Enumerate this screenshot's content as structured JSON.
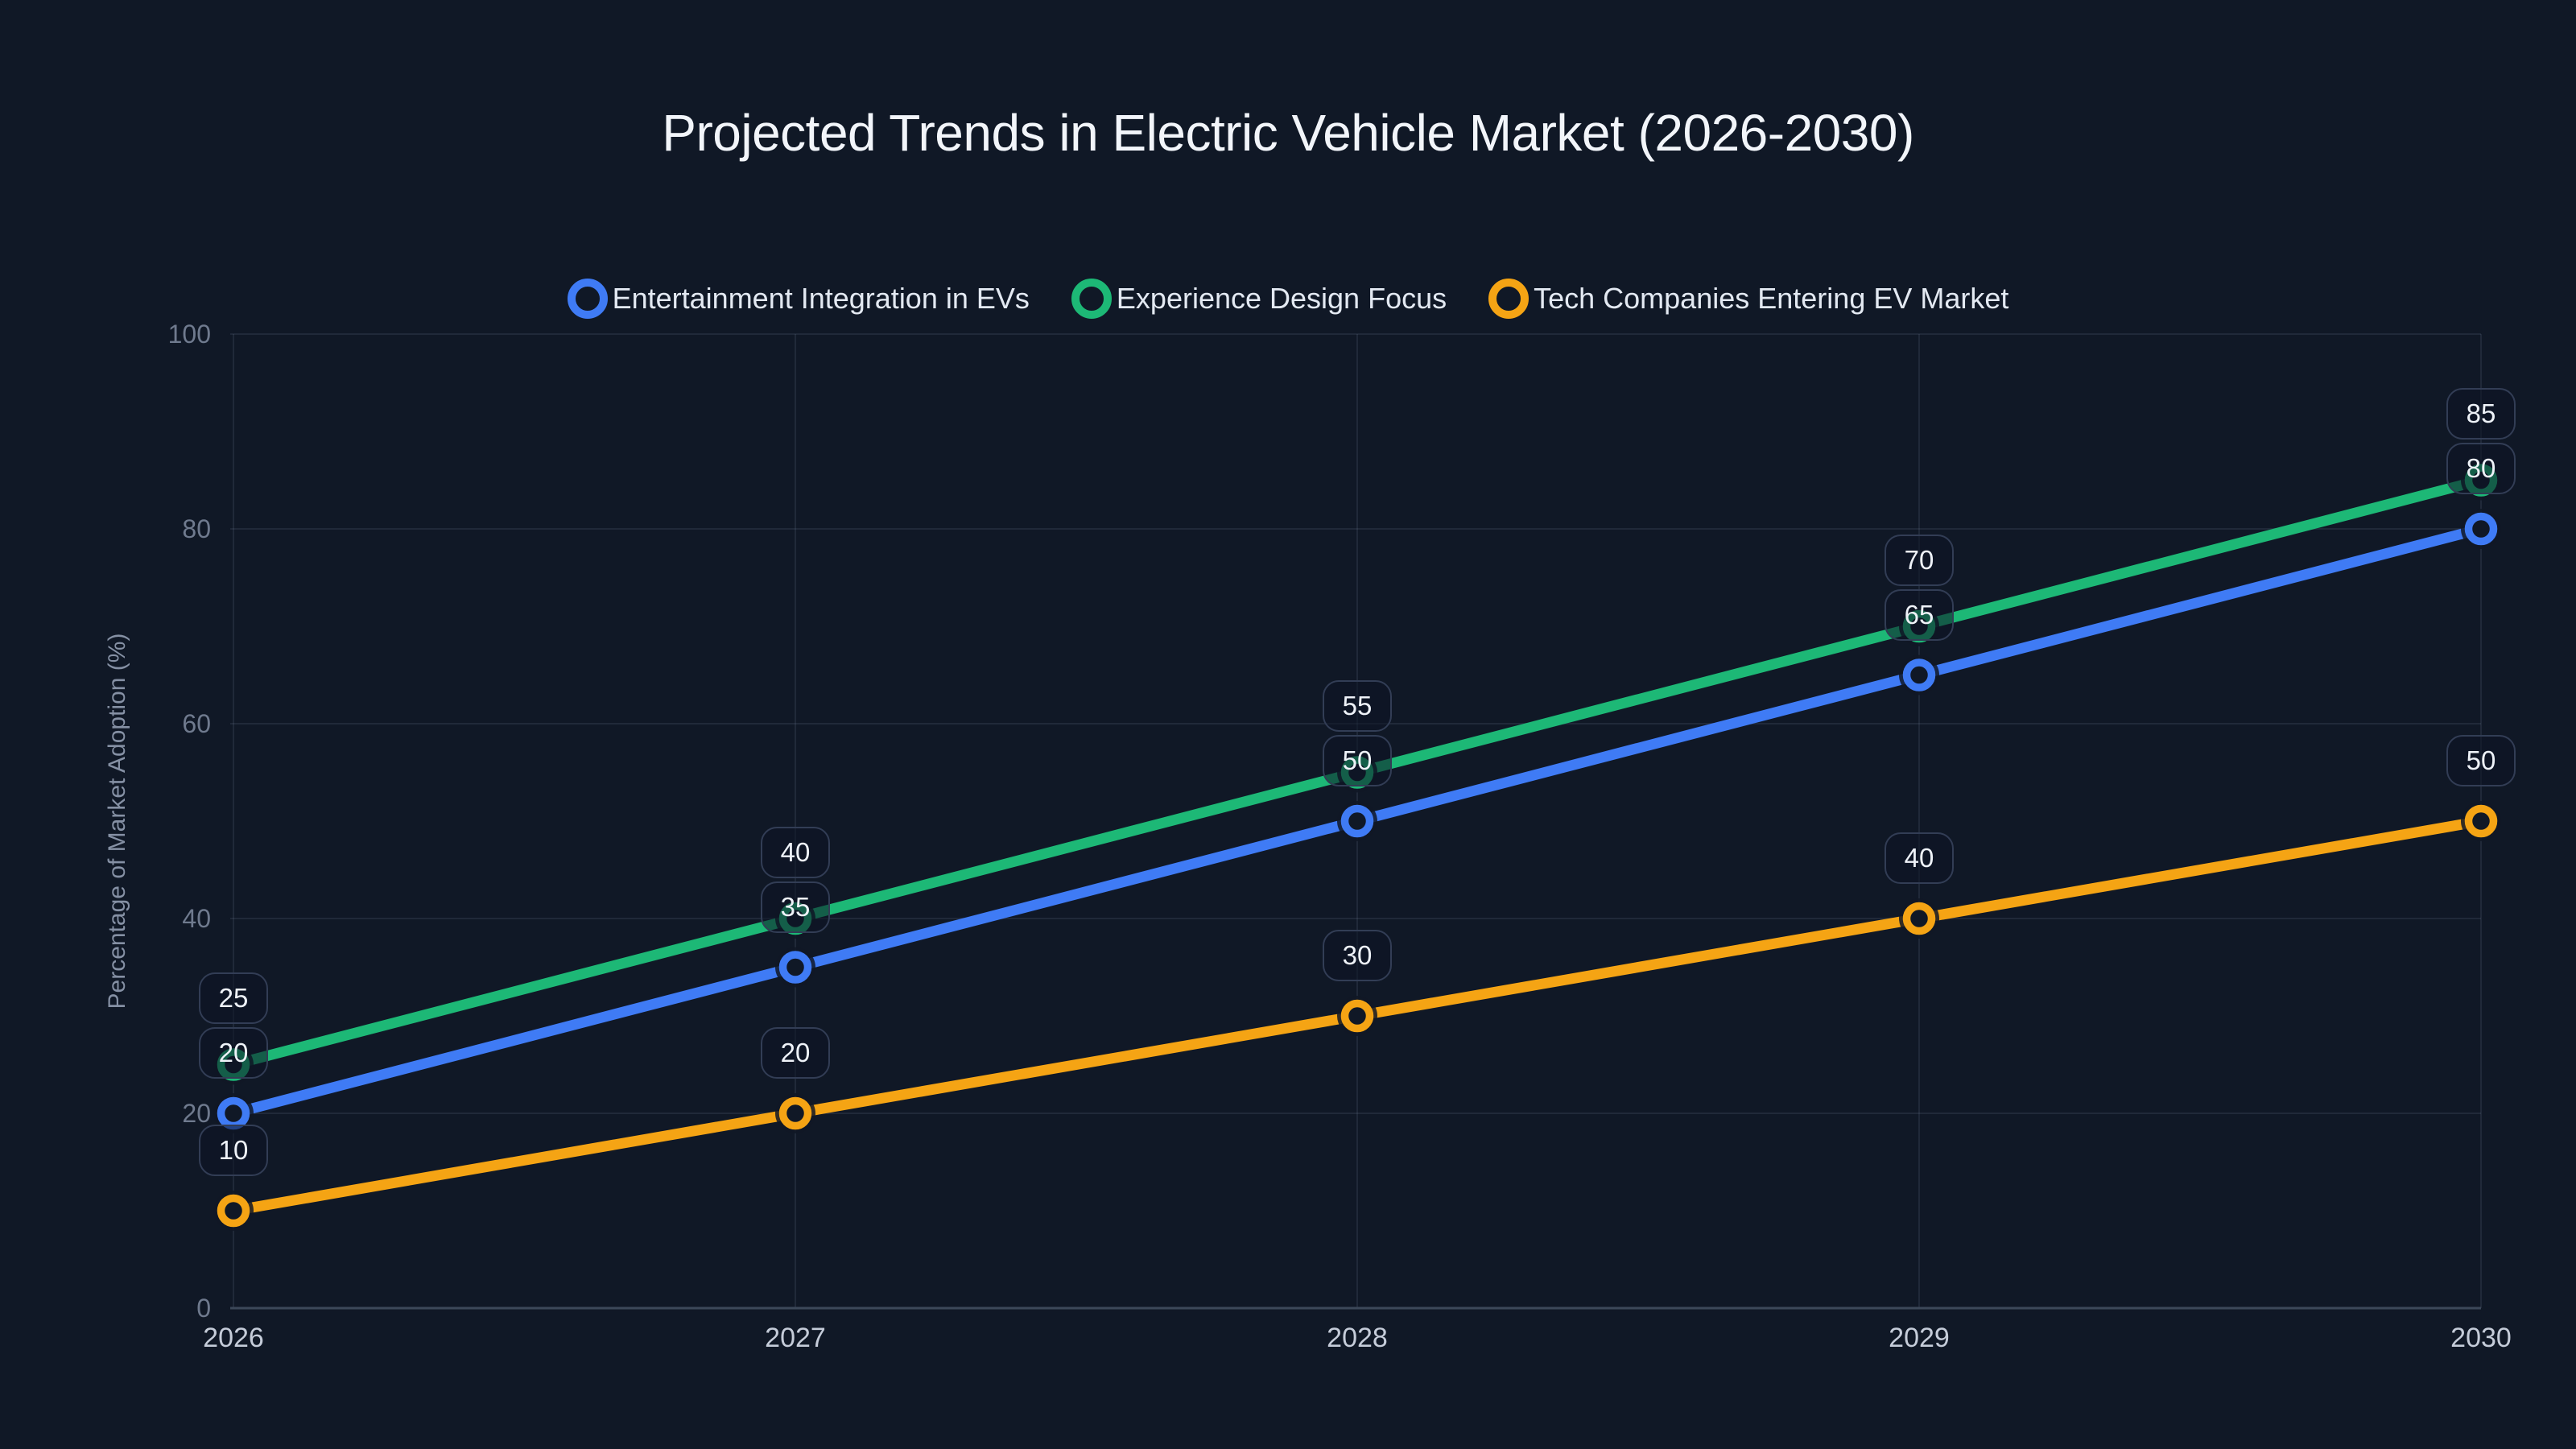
{
  "title": "Projected Trends in Electric Vehicle Market (2026-2030)",
  "chart_data": {
    "type": "line",
    "categories": [
      "2026",
      "2027",
      "2028",
      "2029",
      "2030"
    ],
    "series": [
      {
        "name": "Entertainment Integration in EVs",
        "color": "#3f7bf5",
        "values": [
          20,
          35,
          50,
          65,
          80
        ]
      },
      {
        "name": "Experience Design Focus",
        "color": "#1db876",
        "values": [
          25,
          40,
          55,
          70,
          85
        ]
      },
      {
        "name": "Tech Companies Entering EV Market",
        "color": "#f5a414",
        "values": [
          10,
          20,
          30,
          40,
          50
        ]
      }
    ],
    "title": "Projected Trends in Electric Vehicle Market (2026-2030)",
    "xlabel": "",
    "ylabel": "Percentage of Market Adoption (%)",
    "ylim": [
      0,
      100
    ],
    "yticks": [
      0,
      20,
      40,
      60,
      80,
      100
    ],
    "grid": true,
    "legend_position": "top",
    "point_labels": true
  },
  "theme": {
    "background": "#101826",
    "series_blue": "#3f7bf5",
    "series_green": "#1db876",
    "series_orange": "#f5a414",
    "grid_color": "rgba(148,163,184,0.13)",
    "axis_color": "#3c4859"
  }
}
